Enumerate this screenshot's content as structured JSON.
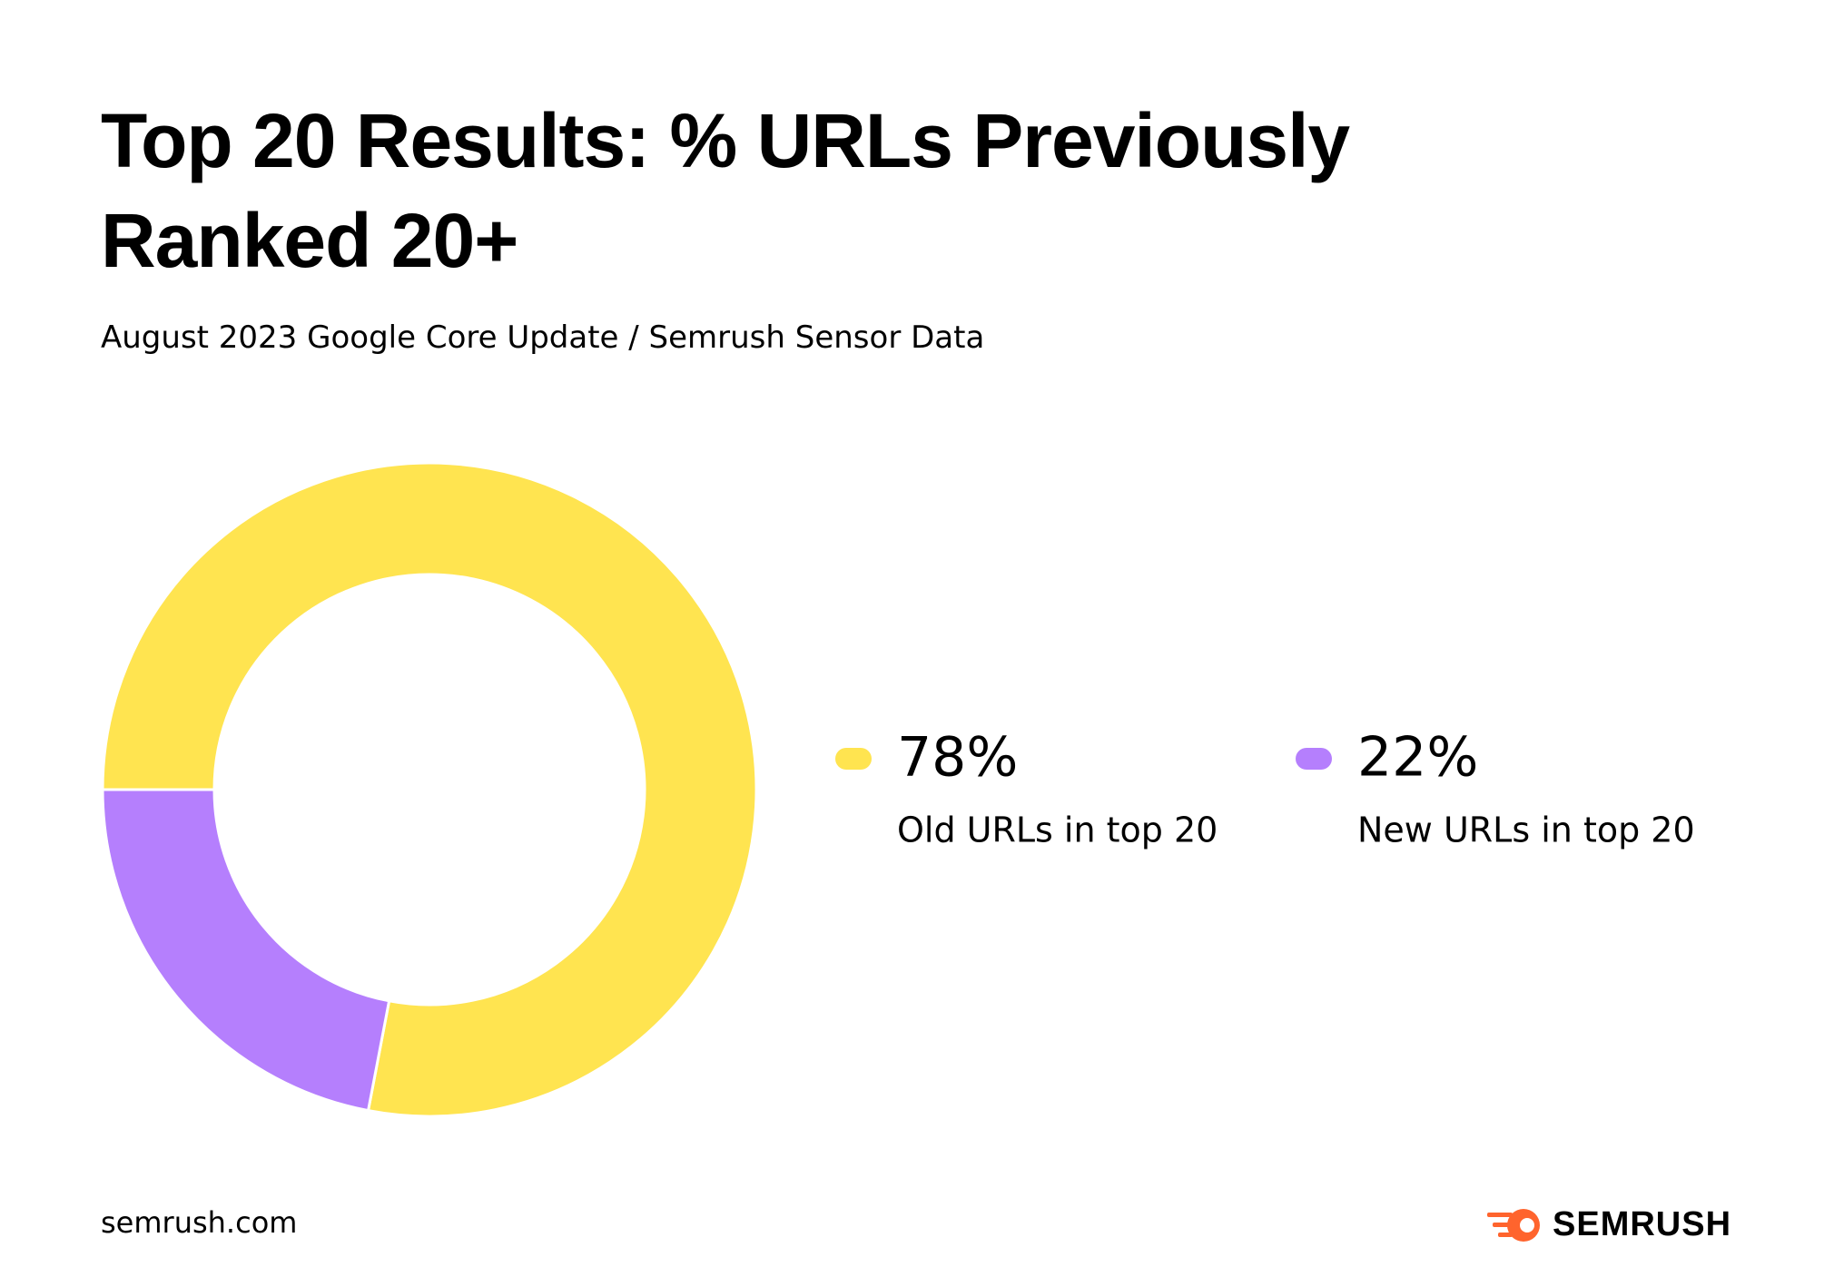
{
  "chart_data": {
    "type": "pie",
    "donut": true,
    "title": "Top 20 Results: % URLs Previously Ranked 20+",
    "subtitle": "August 2023 Google Core Update / Semrush Sensor Data",
    "categories": [
      "Old URLs in top 20",
      "New URLs in top 20"
    ],
    "values": [
      78,
      22
    ],
    "value_labels": [
      "78%",
      "22%"
    ],
    "colors": [
      "#ffe450",
      "#b57ffd"
    ]
  },
  "footer": {
    "source": "semrush.com",
    "brand": "SEMRUSH"
  }
}
